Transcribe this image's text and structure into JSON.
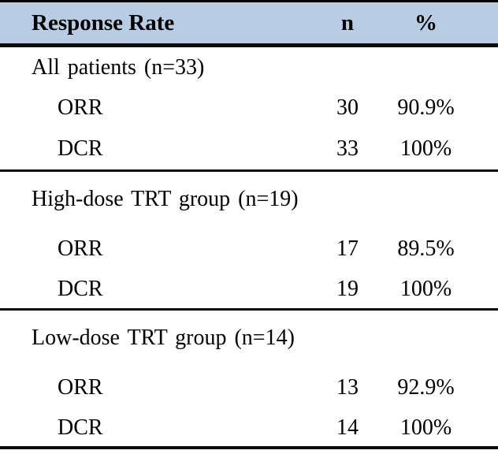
{
  "header": {
    "label": "Response Rate",
    "n": "n",
    "pct": "%"
  },
  "sections": [
    {
      "title": "All patients (n=33)",
      "rows": [
        {
          "label": "ORR",
          "n": "30",
          "pct": "90.9%"
        },
        {
          "label": "DCR",
          "n": "33",
          "pct": "100%"
        }
      ]
    },
    {
      "title": "High-dose TRT group (n=19)",
      "rows": [
        {
          "label": "ORR",
          "n": "17",
          "pct": "89.5%"
        },
        {
          "label": "DCR",
          "n": "19",
          "pct": "100%"
        }
      ]
    },
    {
      "title": "Low-dose TRT group (n=14)",
      "rows": [
        {
          "label": "ORR",
          "n": "13",
          "pct": "92.9%"
        },
        {
          "label": "DCR",
          "n": "14",
          "pct": "100%"
        }
      ]
    }
  ],
  "colors": {
    "header_bg": "#b8cce4",
    "border": "#0d0d0d",
    "text": "#000000"
  },
  "chart_data": {
    "type": "table",
    "title": "Response Rate",
    "columns": [
      "Response Rate",
      "n",
      "%"
    ],
    "rows": [
      [
        "All patients (n=33)",
        "",
        ""
      ],
      [
        "ORR",
        "30",
        "90.9%"
      ],
      [
        "DCR",
        "33",
        "100%"
      ],
      [
        "High-dose TRT group (n=19)",
        "",
        ""
      ],
      [
        "ORR",
        "17",
        "89.5%"
      ],
      [
        "DCR",
        "19",
        "100%"
      ],
      [
        "Low-dose TRT group (n=14)",
        "",
        ""
      ],
      [
        "ORR",
        "13",
        "92.9%"
      ],
      [
        "DCR",
        "14",
        "100%"
      ]
    ]
  }
}
